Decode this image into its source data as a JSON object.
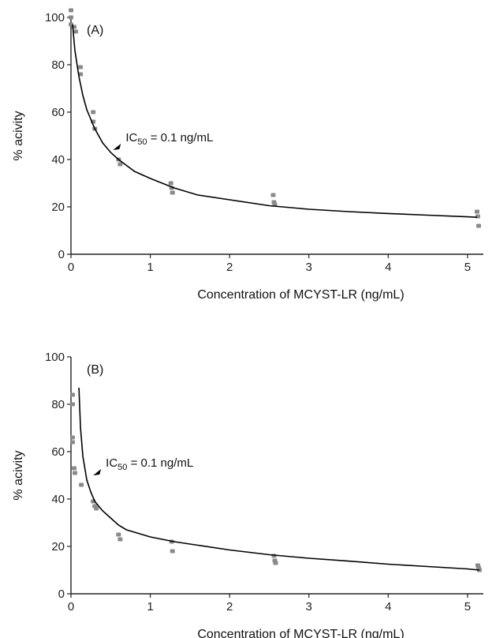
{
  "chart_data": [
    {
      "type": "scatter",
      "panel_label": "(A)",
      "xlabel": "Concentration of MCYST-LR (ng/mL)",
      "ylabel": "% acivity",
      "xlim": [
        0,
        5.2
      ],
      "ylim": [
        0,
        100
      ],
      "xticks": [
        0,
        1,
        2,
        3,
        4,
        5
      ],
      "yticks": [
        0,
        20,
        40,
        60,
        80,
        100
      ],
      "annotation": {
        "prefix": "IC",
        "sub": "50",
        "suffix": " = 0.1 ng/mL",
        "x": 0.55,
        "y": 45
      },
      "series": [
        {
          "type": "scatter",
          "x": [
            0,
            0,
            0,
            0.04,
            0.06,
            0.12,
            0.12,
            0.28,
            0.28,
            0.3,
            0.6,
            0.62,
            1.26,
            1.27,
            1.28,
            2.55,
            2.56,
            2.57,
            5.12,
            5.13,
            5.14
          ],
          "y": [
            103,
            100,
            97,
            96,
            94,
            79,
            76,
            60,
            56,
            53,
            40,
            38,
            30,
            28,
            26,
            25,
            22,
            21,
            18,
            16,
            12
          ]
        },
        {
          "type": "line",
          "x": [
            0.02,
            0.05,
            0.1,
            0.15,
            0.2,
            0.3,
            0.4,
            0.5,
            0.6,
            0.8,
            1.0,
            1.3,
            1.6,
            2.0,
            2.5,
            3.0,
            3.5,
            4.0,
            4.5,
            5.0,
            5.12
          ],
          "y": [
            97,
            86,
            75,
            67,
            61,
            53,
            47,
            43,
            40,
            35,
            32,
            28,
            25,
            23,
            20.5,
            19,
            18,
            17.2,
            16.5,
            15.8,
            15.6
          ]
        }
      ]
    },
    {
      "type": "scatter",
      "panel_label": "(B)",
      "xlabel": "Concentration of MCYST-LR (ng/mL)",
      "ylabel": "% acivity",
      "xlim": [
        0,
        5.2
      ],
      "ylim": [
        0,
        100
      ],
      "xticks": [
        0,
        1,
        2,
        3,
        4,
        5
      ],
      "yticks": [
        0,
        20,
        40,
        60,
        80,
        100
      ],
      "annotation": {
        "prefix": "IC",
        "sub": "50",
        "suffix": " = 0.1 ng/mL",
        "x": 0.3,
        "y": 51
      },
      "series": [
        {
          "type": "scatter",
          "x": [
            0.02,
            0.02,
            0.02,
            0.02,
            0.04,
            0.05,
            0.13,
            0.28,
            0.3,
            0.32,
            0.6,
            0.62,
            1.27,
            1.28,
            2.56,
            2.57,
            2.58,
            5.13,
            5.14,
            5.15
          ],
          "y": [
            84,
            80,
            66,
            64,
            53,
            51,
            46,
            39,
            37,
            36,
            25,
            23,
            22,
            18,
            16,
            14,
            13,
            12,
            11,
            10
          ]
        },
        {
          "type": "line",
          "x": [
            0.1,
            0.12,
            0.15,
            0.2,
            0.25,
            0.3,
            0.4,
            0.5,
            0.6,
            0.7,
            0.8,
            1.0,
            1.3,
            1.6,
            2.0,
            2.5,
            3.0,
            3.5,
            4.0,
            4.5,
            5.0,
            5.15
          ],
          "y": [
            87,
            70,
            58,
            48,
            43,
            39,
            35,
            32,
            29,
            27,
            26,
            24,
            22,
            20.5,
            18.5,
            16.5,
            15,
            13.8,
            12.5,
            11.5,
            10.5,
            10
          ]
        }
      ]
    }
  ]
}
